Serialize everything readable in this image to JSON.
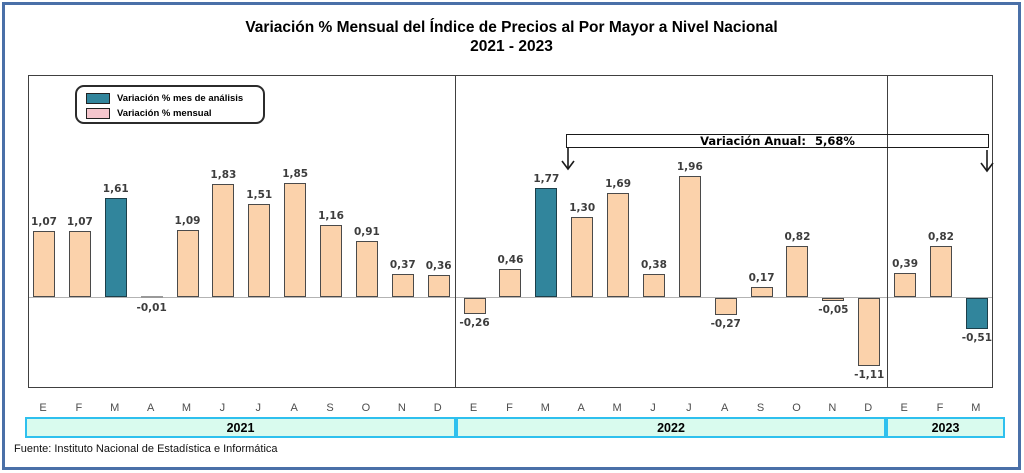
{
  "title": {
    "line1": "Variación % Mensual del Índice de Precios al Por Mayor a Nivel Nacional",
    "line2": "2021 - 2023"
  },
  "legend": {
    "items": [
      {
        "label": "Variación % mes de análisis",
        "color": "#31859C"
      },
      {
        "label": "Variación % mensual",
        "color": "#F5C6CD"
      }
    ]
  },
  "annotation": {
    "label": "Variación Anual:",
    "value": "5,68%"
  },
  "chart_data": {
    "type": "bar",
    "title": "Variación % Mensual del Índice de Precios al Por Mayor a Nivel Nacional",
    "subtitle": "2021 - 2023",
    "unit": "%",
    "ylim": [
      -1.5,
      3.6
    ],
    "grid": false,
    "zero_line": true,
    "legend_position": "top-left",
    "colors": {
      "highlight": "#31859C",
      "normal": "#FBD2AB",
      "flat": "#999999"
    },
    "groups": [
      {
        "year": "2021",
        "months": [
          "E",
          "F",
          "M",
          "A",
          "M",
          "J",
          "J",
          "A",
          "S",
          "O",
          "N",
          "D"
        ],
        "values": [
          1.07,
          1.07,
          1.61,
          -0.01,
          1.09,
          1.83,
          1.51,
          1.85,
          1.16,
          0.91,
          0.37,
          0.36
        ],
        "labels": [
          "1,07",
          "1,07",
          "1,61",
          "-0,01",
          "1,09",
          "1,83",
          "1,51",
          "1,85",
          "1,16",
          "0,91",
          "0,37",
          "0,36"
        ],
        "highlight_index": 2
      },
      {
        "year": "2022",
        "months": [
          "E",
          "F",
          "M",
          "A",
          "M",
          "J",
          "J",
          "A",
          "S",
          "O",
          "N",
          "D"
        ],
        "values": [
          -0.26,
          0.46,
          1.77,
          1.3,
          1.69,
          0.38,
          1.96,
          -0.27,
          0.17,
          0.82,
          -0.05,
          -1.11
        ],
        "labels": [
          "-0,26",
          "0,46",
          "1,77",
          "1,30",
          "1,69",
          "0,38",
          "1,96",
          "-0,27",
          "0,17",
          "0,82",
          "-0,05",
          "-1,11"
        ],
        "highlight_index": 2
      },
      {
        "year": "2023",
        "months": [
          "E",
          "F",
          "M"
        ],
        "values": [
          0.39,
          0.82,
          -0.51
        ],
        "labels": [
          "0,39",
          "0,82",
          "-0,51"
        ],
        "highlight_index": 2
      }
    ],
    "annotation": {
      "text": "Variación Anual:  5,68%",
      "from_month": "M 2022",
      "to_month": "M 2023"
    }
  },
  "footer": {
    "source": "Fuente: Instituto Nacional de Estadística e Informática"
  }
}
